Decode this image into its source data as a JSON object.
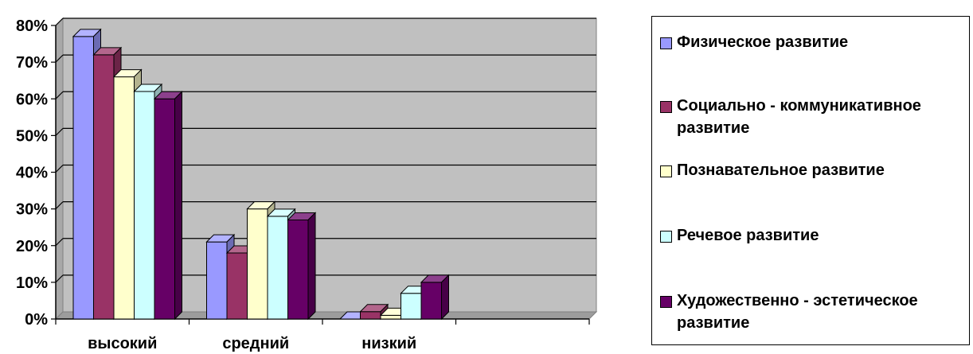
{
  "chart_data": {
    "type": "bar",
    "categories": [
      "высокий",
      "средний",
      "низкий",
      ""
    ],
    "series": [
      {
        "name": "Физическое развитие",
        "values": [
          77,
          21,
          0,
          null
        ],
        "color": "#9999ff"
      },
      {
        "name": "Социально - коммуникативное развитие",
        "values": [
          72,
          18,
          2,
          null
        ],
        "color": "#993366"
      },
      {
        "name": "Познавательное развитие",
        "values": [
          66,
          30,
          1,
          null
        ],
        "color": "#ffffcc"
      },
      {
        "name": "Речевое развитие",
        "values": [
          62,
          28,
          7,
          null
        ],
        "color": "#ccffff"
      },
      {
        "name": "Художественно - эстетическое развитие",
        "values": [
          60,
          27,
          10,
          null
        ],
        "color": "#660066"
      }
    ],
    "y_ticks": [
      "0%",
      "10%",
      "20%",
      "30%",
      "40%",
      "50%",
      "60%",
      "70%",
      "80%"
    ],
    "ylim": [
      0,
      80
    ],
    "grid": true,
    "legend_position": "right",
    "plot_background": "#c0c0c0"
  }
}
